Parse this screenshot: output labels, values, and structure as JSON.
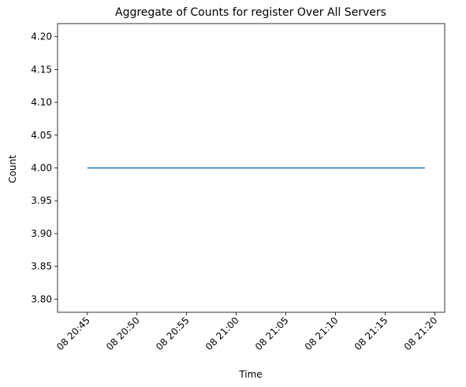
{
  "chart_data": {
    "type": "line",
    "title": "Aggregate of Counts for register Over All Servers",
    "xlabel": "Time",
    "ylabel": "Count",
    "x_ticks": [
      "08 20:45",
      "08 20:50",
      "08 20:55",
      "08 21:00",
      "08 21:05",
      "08 21:10",
      "08 21:15",
      "08 21:20"
    ],
    "y_ticks": [
      "3.80",
      "3.85",
      "3.90",
      "3.95",
      "4.00",
      "4.05",
      "4.10",
      "4.15",
      "4.20"
    ],
    "xlim": [
      "08 20:42",
      "08 21:21"
    ],
    "ylim": [
      3.78,
      4.22
    ],
    "grid": false,
    "series": [
      {
        "color": "#1f77b4",
        "x": [
          "08 20:45",
          "08 21:19"
        ],
        "y": [
          4.0,
          4.0
        ]
      }
    ]
  }
}
